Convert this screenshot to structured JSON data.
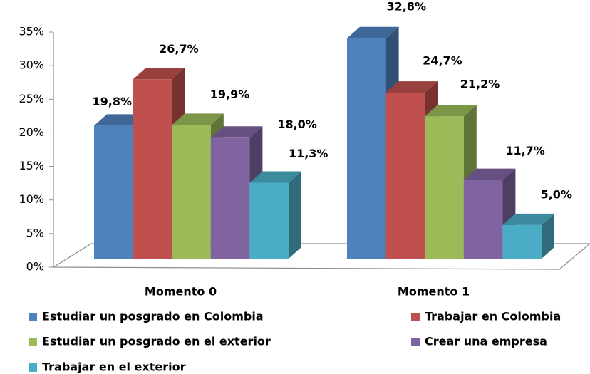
{
  "chart_data": {
    "type": "bar3d",
    "categories": [
      "Momento 0",
      "Momento 1"
    ],
    "series": [
      {
        "name": "Estudiar un posgrado en Colombia",
        "color": "#4f81bd",
        "values": [
          19.8,
          32.8
        ],
        "value_labels": [
          "19,8%",
          "32,8%"
        ]
      },
      {
        "name": "Trabajar en Colombia",
        "color": "#c0504d",
        "values": [
          26.7,
          24.7
        ],
        "value_labels": [
          "26,7%",
          "24,7%"
        ]
      },
      {
        "name": "Estudiar un posgrado en el exterior",
        "color": "#9bbb59",
        "values": [
          19.9,
          21.2
        ],
        "value_labels": [
          "19,9%",
          "21,2%"
        ]
      },
      {
        "name": "Crear una empresa",
        "color": "#8064a2",
        "values": [
          18.0,
          11.7
        ],
        "value_labels": [
          "18,0%",
          "11,7%"
        ]
      },
      {
        "name": "Trabajar en el exterior",
        "color": "#4bacc6",
        "values": [
          11.3,
          5.0
        ],
        "value_labels": [
          "11,3%",
          "5,0%"
        ]
      }
    ],
    "ylim": [
      0,
      35
    ],
    "yticks": [
      {
        "value": 0,
        "label": "0%"
      },
      {
        "value": 5,
        "label": "5%"
      },
      {
        "value": 10,
        "label": "10%"
      },
      {
        "value": 15,
        "label": "15%"
      },
      {
        "value": 20,
        "label": "20%"
      },
      {
        "value": 25,
        "label": "25%"
      },
      {
        "value": 30,
        "label": "30%"
      },
      {
        "value": 35,
        "label": "35%"
      }
    ],
    "grid": false,
    "legend": "bottom"
  }
}
